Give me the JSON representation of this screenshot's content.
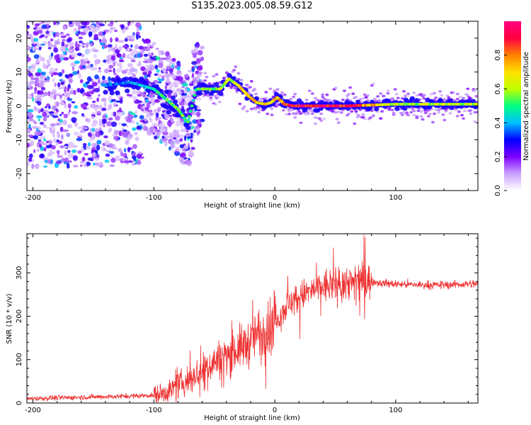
{
  "title": "S135.2023.005.08.59.G12",
  "chart_data": [
    {
      "type": "heatmap",
      "xlabel": "Height of straight line (km)",
      "ylabel": "Frequency (Hz)",
      "xlim": [
        -205,
        168
      ],
      "ylim": [
        -25,
        25
      ],
      "x_ticks": [
        -200,
        -100,
        0,
        100
      ],
      "y_ticks": [
        -20,
        -10,
        0,
        10,
        20
      ],
      "colorbar": {
        "label": "Normalized spectral amplitude",
        "range": [
          0,
          1
        ],
        "ticks": [
          0.0,
          0.2,
          0.4,
          0.6,
          0.8
        ],
        "colors": [
          "#ffffff",
          "#c9a0ff",
          "#7f00ff",
          "#0000ff",
          "#00c0ff",
          "#00ff80",
          "#c0ff00",
          "#ffe000",
          "#ff8000",
          "#ff0040",
          "#ff0080"
        ]
      },
      "ridge": {
        "x": [
          -140,
          -120,
          -100,
          -90,
          -80,
          -72,
          -65,
          -55,
          -45,
          -38,
          -30,
          -22,
          -15,
          -8,
          -3,
          2,
          8,
          15,
          30,
          60,
          100,
          140,
          168
        ],
        "y": [
          6,
          7,
          5,
          2,
          -1,
          -5,
          5,
          5,
          5,
          8,
          6,
          3,
          1,
          0.5,
          1,
          2.5,
          0.5,
          0,
          0,
          0,
          0.5,
          0.5,
          0.5
        ],
        "amplitude": [
          0.35,
          0.4,
          0.45,
          0.5,
          0.55,
          0.5,
          0.5,
          0.55,
          0.6,
          0.6,
          0.65,
          0.7,
          0.7,
          0.75,
          0.7,
          0.7,
          0.8,
          0.95,
          0.95,
          0.9,
          0.6,
          0.6,
          0.6
        ]
      }
    },
    {
      "type": "line",
      "xlabel": "Height of straight line (km)",
      "ylabel": "SNR (10 * v/v)",
      "xlim": [
        -205,
        168
      ],
      "ylim": [
        0,
        390
      ],
      "x_ticks": [
        -200,
        -100,
        0,
        100
      ],
      "y_ticks": [
        0,
        100,
        200,
        300
      ],
      "color": "#ee3030",
      "series": [
        {
          "x": [
            -205,
            -180,
            -150,
            -120,
            -100,
            -90,
            -80,
            -70,
            -60,
            -50,
            -40,
            -30,
            -20,
            -15,
            -10,
            -5,
            0,
            5,
            10,
            20,
            30,
            40,
            50,
            60,
            65,
            70,
            80,
            90,
            100,
            120,
            140,
            168
          ],
          "values": [
            10,
            12,
            14,
            16,
            18,
            25,
            40,
            55,
            75,
            95,
            110,
            125,
            140,
            160,
            165,
            175,
            195,
            205,
            225,
            245,
            258,
            268,
            272,
            278,
            280,
            282,
            280,
            276,
            274,
            272,
            272,
            275
          ]
        }
      ]
    }
  ]
}
